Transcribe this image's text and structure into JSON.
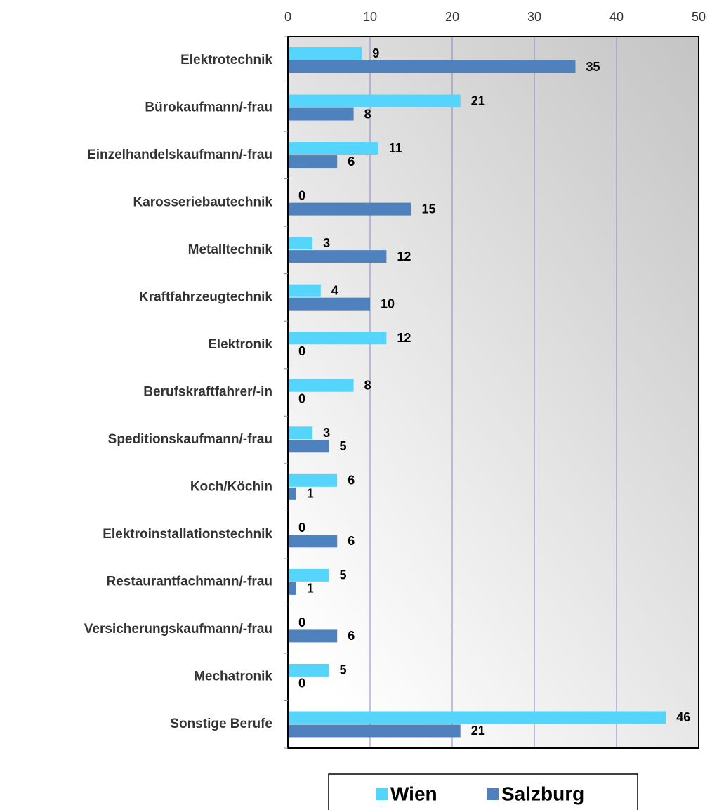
{
  "chart_data": {
    "type": "barh",
    "categories": [
      "Elektrotechnik",
      "Bürokaufmann/-frau",
      "Einzelhandelskaufmann/-frau",
      "Karosseriebautechnik",
      "Metalltechnik",
      "Kraftfahrzeugtechnik",
      "Elektronik",
      "Berufskraftfahrer/-in",
      "Speditionskaufmann/-frau",
      "Koch/Köchin",
      "Elektroinstallationstechnik",
      "Restaurantfachmann/-frau",
      "Versicherungskaufmann/-frau",
      "Mechatronik",
      "Sonstige Berufe"
    ],
    "series": [
      {
        "name": "Wien",
        "color": "#55d5fb",
        "values": [
          9,
          21,
          11,
          0,
          3,
          4,
          12,
          8,
          3,
          6,
          0,
          5,
          0,
          5,
          46
        ]
      },
      {
        "name": "Salzburg",
        "color": "#4f81bd",
        "values": [
          35,
          8,
          6,
          15,
          12,
          10,
          0,
          0,
          5,
          1,
          6,
          1,
          6,
          0,
          21
        ]
      }
    ],
    "xlim": [
      0,
      50
    ],
    "xticks": [
      0,
      10,
      20,
      30,
      40,
      50
    ],
    "grid": true,
    "legend": "bottom"
  }
}
